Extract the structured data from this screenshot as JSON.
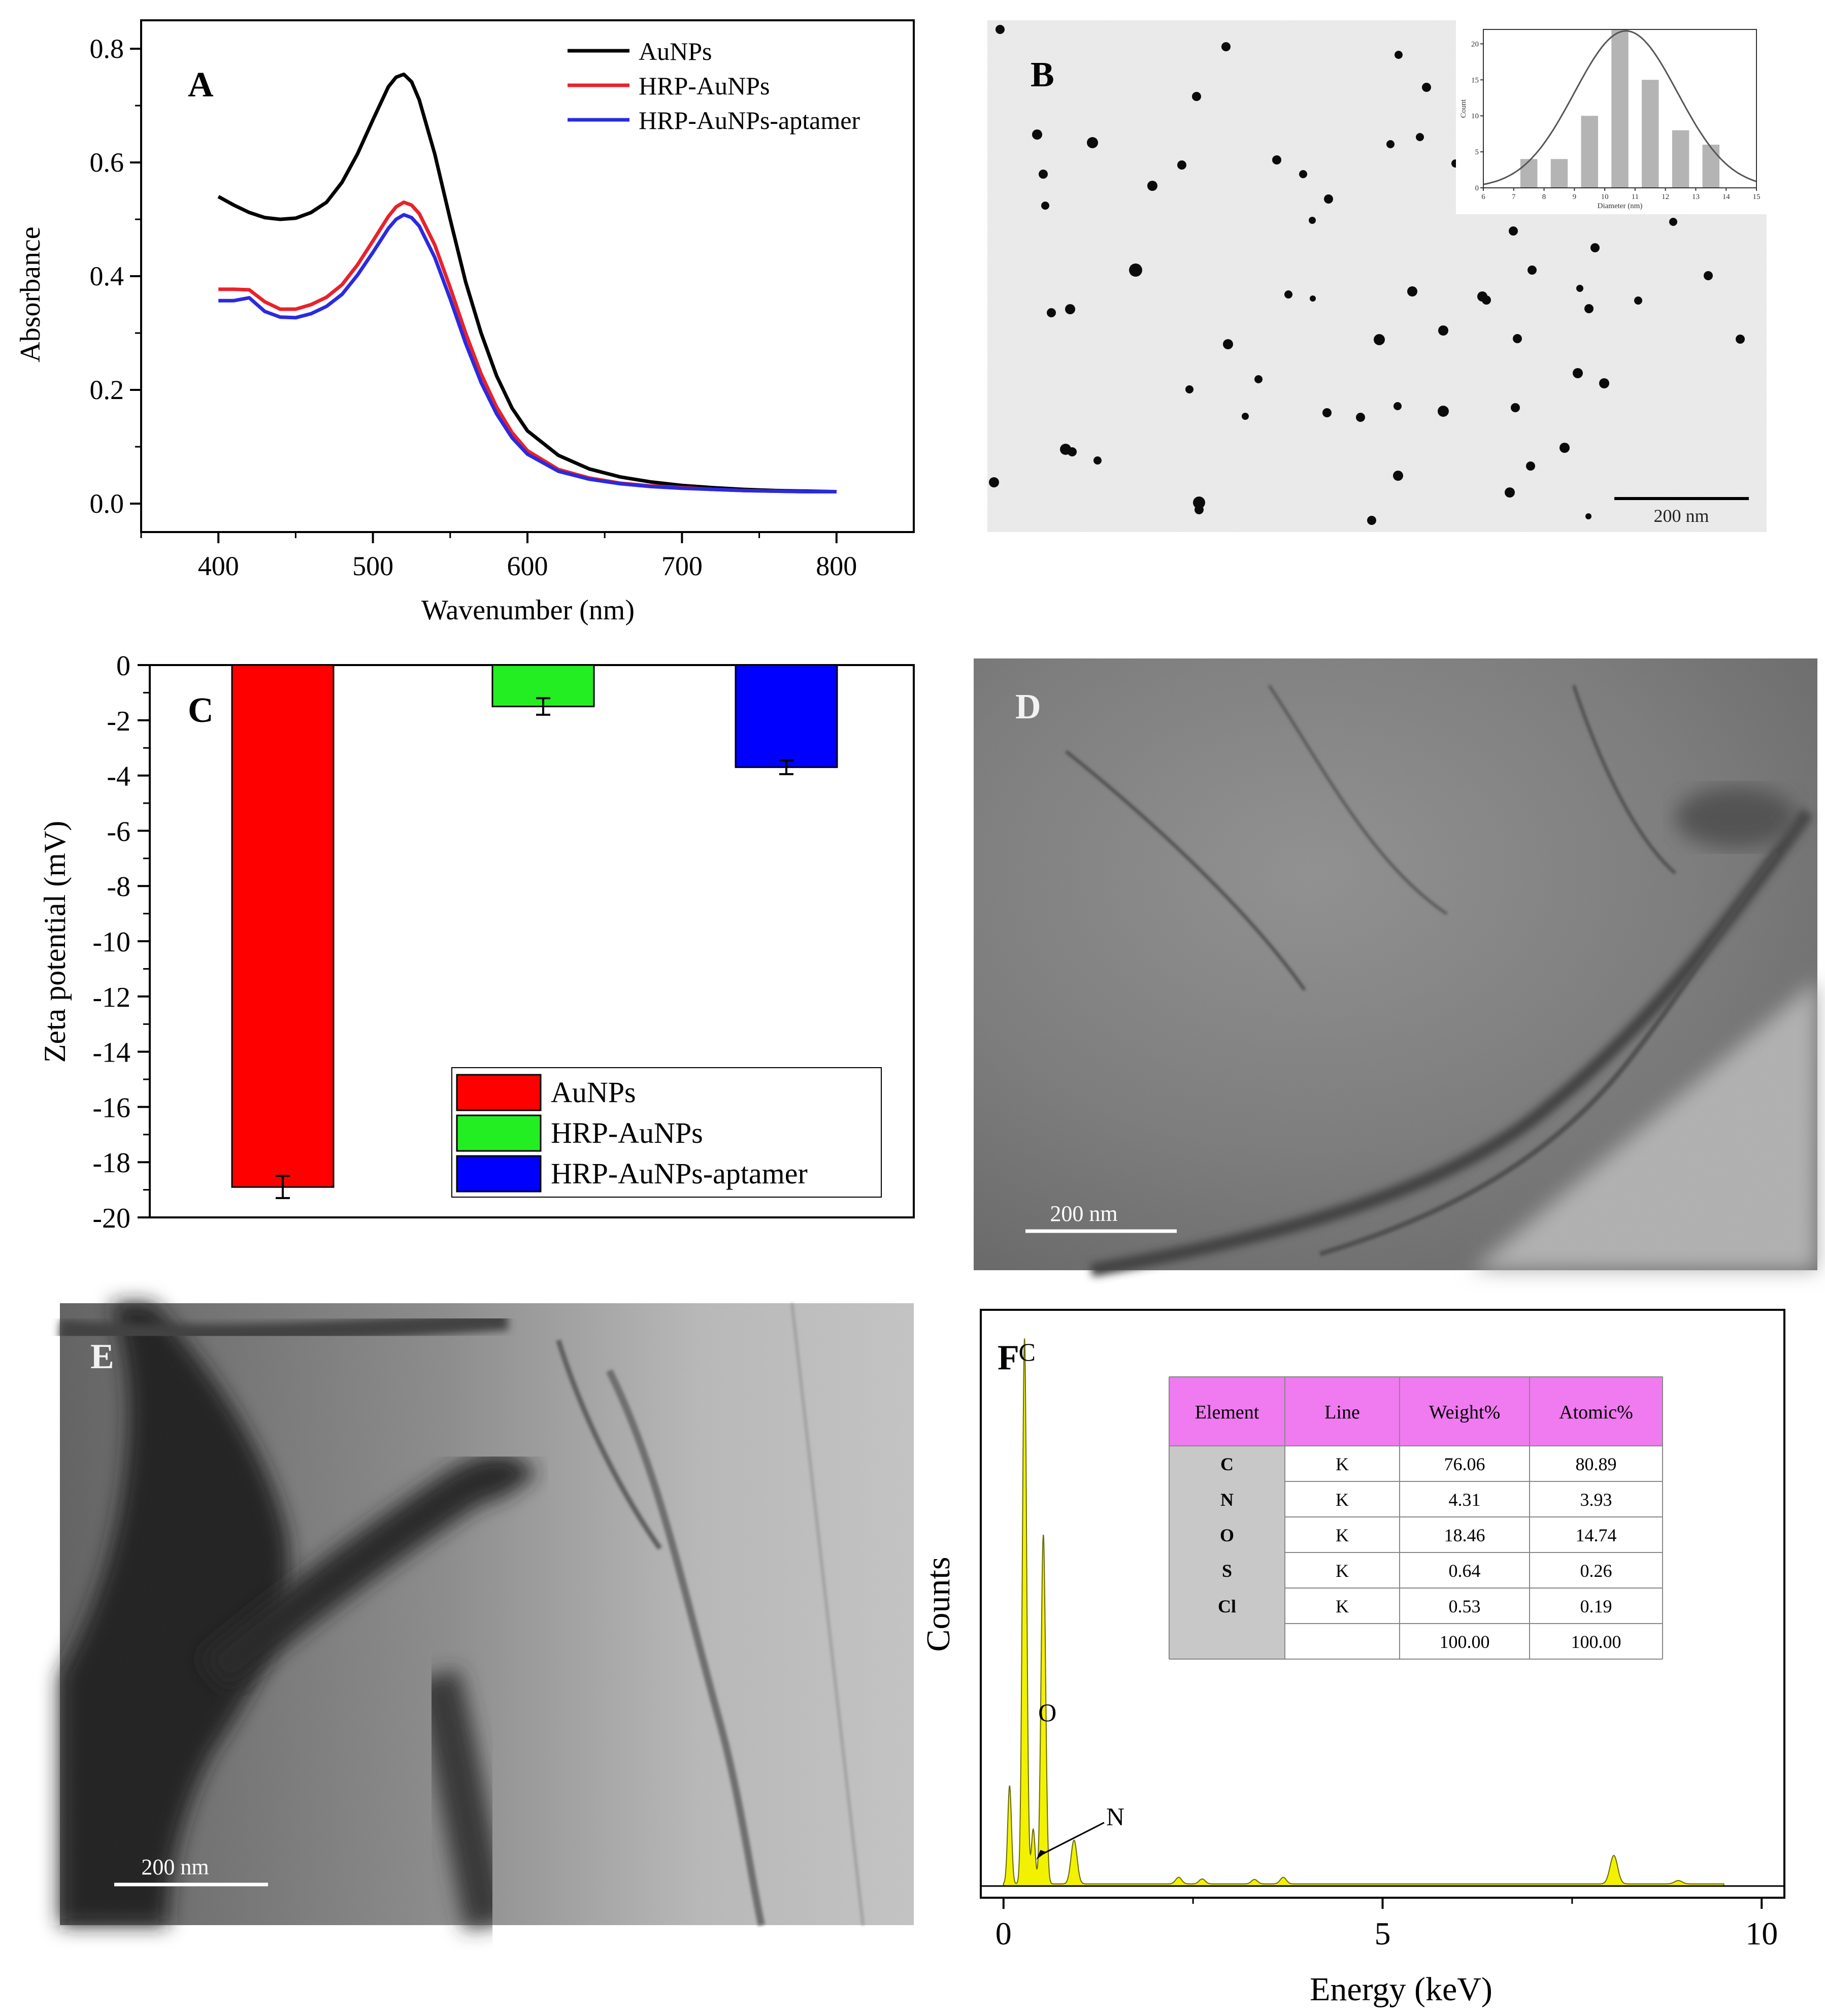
{
  "figure_panels": {
    "A": {
      "letter": "A"
    },
    "B": {
      "letter": "B",
      "scale_bar_label": "200  nm"
    },
    "C": {
      "letter": "C"
    },
    "D": {
      "letter": "D",
      "scale_bar_label": "200 nm"
    },
    "E": {
      "letter": "E",
      "scale_bar_label": "200 nm"
    },
    "F": {
      "letter": "F"
    }
  },
  "colors": {
    "black": "#000000",
    "red": "#e8222a",
    "blue": "#2a2ae0",
    "bar_red": "#ff0000",
    "bar_green": "#22ee22",
    "bar_blue": "#0000ff",
    "eds_fill": "#f2f200",
    "table_header": "#f07af0",
    "table_side": "#c8c8c8"
  },
  "chart_data": [
    {
      "panel": "A",
      "type": "line",
      "title": "",
      "xlabel": "Wavenumber (nm)",
      "ylabel": "Absorbance",
      "xlim": [
        350,
        850
      ],
      "ylim": [
        -0.05,
        0.85
      ],
      "xticks": [
        400,
        500,
        600,
        700,
        800
      ],
      "xtick_labels": [
        "400",
        "500",
        "600",
        "700",
        "800"
      ],
      "yticks": [
        0.0,
        0.2,
        0.4,
        0.6,
        0.8
      ],
      "ytick_labels": [
        "0.0",
        "0.2",
        "0.4",
        "0.6",
        "0.8"
      ],
      "legend_position": "top-right",
      "series": [
        {
          "name": "AuNPs",
          "color": "#000000",
          "x": [
            400,
            410,
            420,
            430,
            440,
            450,
            460,
            470,
            480,
            490,
            500,
            510,
            515,
            520,
            525,
            530,
            540,
            550,
            560,
            570,
            580,
            590,
            600,
            620,
            640,
            660,
            680,
            700,
            720,
            740,
            760,
            780,
            800
          ],
          "y": [
            0.54,
            0.525,
            0.512,
            0.503,
            0.5,
            0.502,
            0.512,
            0.53,
            0.565,
            0.615,
            0.675,
            0.733,
            0.75,
            0.755,
            0.742,
            0.71,
            0.615,
            0.5,
            0.39,
            0.3,
            0.225,
            0.168,
            0.128,
            0.085,
            0.061,
            0.047,
            0.038,
            0.032,
            0.028,
            0.025,
            0.023,
            0.022,
            0.021
          ]
        },
        {
          "name": "HRP-AuNPs",
          "color": "#e8222a",
          "x": [
            400,
            410,
            420,
            430,
            440,
            450,
            460,
            470,
            480,
            490,
            500,
            510,
            515,
            520,
            525,
            530,
            540,
            550,
            560,
            570,
            580,
            590,
            600,
            620,
            640,
            660,
            680,
            700,
            720,
            740,
            760,
            780,
            800
          ],
          "y": [
            0.377,
            0.377,
            0.376,
            0.355,
            0.342,
            0.342,
            0.35,
            0.363,
            0.385,
            0.42,
            0.462,
            0.505,
            0.522,
            0.53,
            0.525,
            0.51,
            0.455,
            0.38,
            0.3,
            0.228,
            0.17,
            0.125,
            0.093,
            0.06,
            0.045,
            0.036,
            0.031,
            0.028,
            0.025,
            0.023,
            0.022,
            0.021,
            0.021
          ]
        },
        {
          "name": "HRP-AuNPs-aptamer",
          "color": "#2a2ae0",
          "x": [
            400,
            410,
            420,
            430,
            440,
            450,
            460,
            470,
            480,
            490,
            500,
            510,
            515,
            520,
            525,
            530,
            540,
            550,
            560,
            570,
            580,
            590,
            600,
            620,
            640,
            660,
            680,
            700,
            720,
            740,
            760,
            780,
            800
          ],
          "y": [
            0.357,
            0.357,
            0.362,
            0.338,
            0.328,
            0.327,
            0.334,
            0.347,
            0.368,
            0.402,
            0.442,
            0.484,
            0.5,
            0.508,
            0.503,
            0.488,
            0.433,
            0.36,
            0.282,
            0.213,
            0.158,
            0.116,
            0.087,
            0.057,
            0.043,
            0.035,
            0.03,
            0.027,
            0.025,
            0.023,
            0.022,
            0.021,
            0.021
          ]
        }
      ]
    },
    {
      "panel": "B-inset",
      "type": "bar",
      "title": "",
      "xlabel": "Diameter (nm)",
      "ylabel": "Count",
      "xlim": [
        6,
        15
      ],
      "ylim": [
        0,
        22
      ],
      "xticks": [
        6,
        7,
        8,
        9,
        10,
        11,
        12,
        13,
        14,
        15
      ],
      "xtick_labels": [
        "6",
        "7",
        "8",
        "9",
        "10",
        "11",
        "12",
        "13",
        "14",
        "15"
      ],
      "yticks": [
        0,
        5,
        10,
        15,
        20
      ],
      "ytick_labels": [
        "0",
        "5",
        "10",
        "15",
        "20"
      ],
      "bin_centers": [
        7.5,
        8.5,
        9.5,
        10.5,
        11.5,
        12.5,
        13.5
      ],
      "values": [
        4,
        4,
        10,
        22,
        15,
        8,
        6
      ],
      "fit_curve": {
        "type": "gaussian",
        "mean": 10.7,
        "sigma": 1.7,
        "amplitude": 21.8
      }
    },
    {
      "panel": "C",
      "type": "bar",
      "title": "",
      "xlabel": "",
      "ylabel": "Zeta potential (mV)",
      "ylim": [
        -20,
        0
      ],
      "yticks": [
        0,
        -2,
        -4,
        -6,
        -8,
        -10,
        -12,
        -14,
        -16,
        -18,
        -20
      ],
      "ytick_labels": [
        "0",
        "-2",
        "-4",
        "-6",
        "-8",
        "-10",
        "-12",
        "-14",
        "-16",
        "-18",
        "-20"
      ],
      "legend_position": "bottom-right",
      "categories": [
        "AuNPs",
        "HRP-AuNPs",
        "HRP-AuNPs-aptamer"
      ],
      "values": [
        -18.9,
        -1.5,
        -3.7
      ],
      "errors": [
        0.4,
        0.3,
        0.25
      ],
      "bar_colors": [
        "#ff0000",
        "#22ee22",
        "#0000ff"
      ]
    },
    {
      "panel": "F",
      "type": "area",
      "title": "",
      "xlabel": "Energy (keV)",
      "ylabel": "Counts",
      "xlim": [
        -0.3,
        10.3
      ],
      "ylim": [
        0,
        100
      ],
      "xticks": [
        0,
        5,
        10
      ],
      "xtick_labels": [
        "0",
        "5",
        "10"
      ],
      "peaks": [
        {
          "energy": 0.08,
          "height": 18,
          "width": 0.025
        },
        {
          "energy": 0.277,
          "height": 100,
          "width": 0.028
        },
        {
          "energy": 0.392,
          "height": 10,
          "width": 0.025
        },
        {
          "energy": 0.525,
          "height": 64,
          "width": 0.03
        },
        {
          "energy": 0.93,
          "height": 8,
          "width": 0.04
        },
        {
          "energy": 2.31,
          "height": 1.2,
          "width": 0.04
        },
        {
          "energy": 2.62,
          "height": 0.9,
          "width": 0.04
        },
        {
          "energy": 3.31,
          "height": 0.8,
          "width": 0.04
        },
        {
          "energy": 3.69,
          "height": 1.2,
          "width": 0.04
        },
        {
          "energy": 8.05,
          "height": 5.2,
          "width": 0.05
        },
        {
          "energy": 8.9,
          "height": 0.6,
          "width": 0.05
        }
      ],
      "peak_labels": [
        {
          "text": "C",
          "energy": 0.277
        },
        {
          "text": "O",
          "energy": 0.525
        },
        {
          "text": "N",
          "energy": 0.392
        }
      ],
      "table": {
        "headers": [
          "Element",
          "Line",
          "Weight%",
          "Atomic%"
        ],
        "rows": [
          [
            "C",
            "K",
            "76.06",
            "80.89"
          ],
          [
            "N",
            "K",
            "4.31",
            "3.93"
          ],
          [
            "O",
            "K",
            "18.46",
            "14.74"
          ],
          [
            "S",
            "K",
            "0.64",
            "0.26"
          ],
          [
            "Cl",
            "K",
            "0.53",
            "0.19"
          ],
          [
            "",
            "",
            "100.00",
            "100.00"
          ]
        ]
      }
    }
  ]
}
